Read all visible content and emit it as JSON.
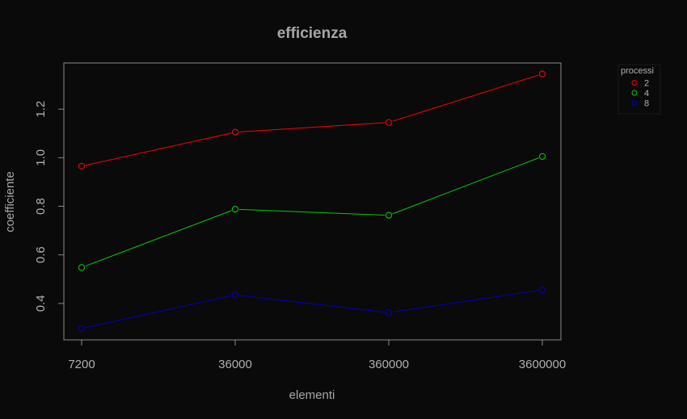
{
  "chart_data": {
    "type": "line",
    "title": "efficienza",
    "xlabel": "elementi",
    "ylabel": "coefficiente",
    "categories": [
      "7200",
      "36000",
      "360000",
      "3600000"
    ],
    "yticks": [
      "0.4",
      "0.6",
      "0.8",
      "1.0",
      "1.2"
    ],
    "ylim": [
      0.25,
      1.39
    ],
    "grid": false,
    "legend": {
      "title": "processi",
      "position": "top-right outside"
    },
    "series": [
      {
        "name": "2",
        "color": "#ff0000",
        "values": [
          0.965,
          1.105,
          1.145,
          1.345
        ]
      },
      {
        "name": "4",
        "color": "#00cc00",
        "values": [
          0.548,
          0.788,
          0.763,
          1.005
        ]
      },
      {
        "name": "8",
        "color": "#0000cc",
        "values": [
          0.297,
          0.435,
          0.362,
          0.456
        ]
      }
    ]
  }
}
